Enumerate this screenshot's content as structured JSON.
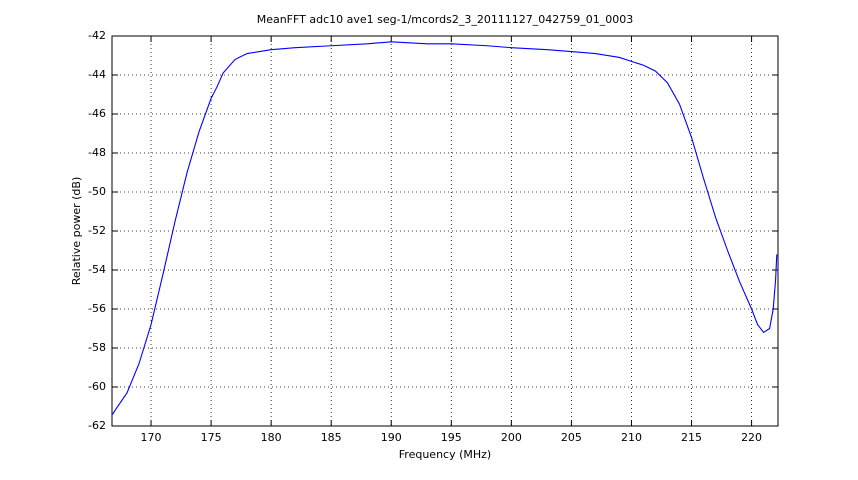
{
  "chart_data": {
    "type": "line",
    "title": "MeanFFT adc10 ave1 seg-1/mcords2_3_20111127_042759_01_0003",
    "x_label": "Frequency (MHz)",
    "y_label": "Relative power (dB)",
    "x": [
      166.8,
      167,
      168,
      169,
      170,
      171,
      172,
      173,
      174,
      175,
      175.5,
      176,
      177,
      178,
      180,
      182,
      185,
      188,
      190,
      193,
      195,
      198,
      200,
      203,
      205,
      207,
      209,
      210,
      211,
      212,
      213,
      214,
      215,
      216,
      217,
      218,
      219,
      220,
      220.5,
      221,
      221.5,
      221.8,
      222,
      222.1
    ],
    "values": [
      -61.4,
      -61.2,
      -60.3,
      -58.8,
      -56.8,
      -54.2,
      -51.5,
      -49.0,
      -46.9,
      -45.2,
      -44.6,
      -43.9,
      -43.2,
      -42.9,
      -42.7,
      -42.6,
      -42.5,
      -42.4,
      -42.3,
      -42.4,
      -42.4,
      -42.5,
      -42.6,
      -42.7,
      -42.8,
      -42.9,
      -43.1,
      -43.3,
      -43.5,
      -43.8,
      -44.4,
      -45.5,
      -47.2,
      -49.3,
      -51.3,
      -53.0,
      -54.6,
      -56.0,
      -56.8,
      -57.2,
      -57.0,
      -56.0,
      -54.5,
      -53.2
    ],
    "color": "#0000ff",
    "xlim": [
      166.75,
      222.2
    ],
    "ylim": [
      -62,
      -42
    ],
    "xticks": [
      170,
      175,
      180,
      185,
      190,
      195,
      200,
      205,
      210,
      215,
      220
    ],
    "yticks": [
      -62,
      -60,
      -58,
      -56,
      -54,
      -52,
      -50,
      -48,
      -46,
      -44,
      -42
    ],
    "grid": true
  }
}
